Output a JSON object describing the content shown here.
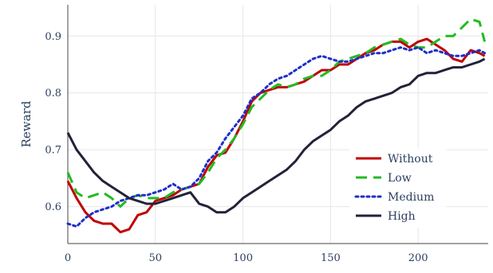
{
  "chart_data": {
    "type": "line",
    "title": "",
    "xlabel": "",
    "ylabel": "Reward",
    "xlim": [
      0,
      240
    ],
    "ylim": [
      0.535,
      0.955
    ],
    "xticks": [
      0,
      50,
      100,
      150,
      200
    ],
    "xtick_labels": [
      "0",
      "50",
      "100",
      "150",
      "200"
    ],
    "yticks": [
      0.6,
      0.7,
      0.8,
      0.9
    ],
    "ytick_labels": [
      "0.6",
      "0.7",
      "0.8",
      "0.9"
    ],
    "grid": true,
    "legend_position": "bottom-right",
    "series": [
      {
        "name": "Without",
        "color": "#c00000",
        "dash": "solid",
        "x": [
          0,
          5,
          10,
          15,
          20,
          25,
          30,
          35,
          40,
          45,
          50,
          55,
          60,
          65,
          70,
          75,
          80,
          85,
          90,
          95,
          100,
          105,
          110,
          115,
          120,
          125,
          130,
          135,
          140,
          145,
          150,
          155,
          160,
          165,
          170,
          175,
          180,
          185,
          190,
          195,
          200,
          205,
          210,
          215,
          220,
          225,
          230,
          235,
          238
        ],
        "y": [
          0.645,
          0.615,
          0.59,
          0.575,
          0.57,
          0.57,
          0.555,
          0.56,
          0.585,
          0.59,
          0.61,
          0.615,
          0.62,
          0.63,
          0.635,
          0.64,
          0.67,
          0.69,
          0.695,
          0.72,
          0.75,
          0.785,
          0.8,
          0.805,
          0.81,
          0.81,
          0.815,
          0.82,
          0.83,
          0.84,
          0.84,
          0.85,
          0.85,
          0.86,
          0.87,
          0.875,
          0.885,
          0.89,
          0.89,
          0.88,
          0.89,
          0.895,
          0.885,
          0.875,
          0.86,
          0.855,
          0.875,
          0.87,
          0.865
        ]
      },
      {
        "name": "Low",
        "color": "#22bb22",
        "dash": "dashed",
        "x": [
          0,
          5,
          10,
          15,
          20,
          25,
          30,
          35,
          40,
          45,
          50,
          55,
          60,
          65,
          70,
          75,
          80,
          85,
          90,
          95,
          100,
          105,
          110,
          115,
          120,
          125,
          130,
          135,
          140,
          145,
          150,
          155,
          160,
          165,
          170,
          175,
          180,
          185,
          190,
          195,
          200,
          205,
          210,
          215,
          220,
          225,
          230,
          235,
          238
        ],
        "y": [
          0.66,
          0.625,
          0.615,
          0.62,
          0.625,
          0.615,
          0.6,
          0.615,
          0.62,
          0.615,
          0.615,
          0.615,
          0.625,
          0.63,
          0.635,
          0.64,
          0.66,
          0.685,
          0.7,
          0.72,
          0.745,
          0.775,
          0.79,
          0.805,
          0.815,
          0.81,
          0.815,
          0.825,
          0.83,
          0.83,
          0.84,
          0.855,
          0.86,
          0.865,
          0.87,
          0.88,
          0.885,
          0.89,
          0.895,
          0.885,
          0.88,
          0.88,
          0.89,
          0.9,
          0.9,
          0.915,
          0.93,
          0.925,
          0.89
        ]
      },
      {
        "name": "Medium",
        "color": "#1f2fc8",
        "dash": "dotted",
        "x": [
          0,
          5,
          10,
          15,
          20,
          25,
          30,
          35,
          40,
          45,
          50,
          55,
          60,
          65,
          70,
          75,
          80,
          85,
          90,
          95,
          100,
          105,
          110,
          115,
          120,
          125,
          130,
          135,
          140,
          145,
          150,
          155,
          160,
          165,
          170,
          175,
          180,
          185,
          190,
          195,
          200,
          205,
          210,
          215,
          220,
          225,
          230,
          235,
          238
        ],
        "y": [
          0.57,
          0.565,
          0.58,
          0.59,
          0.595,
          0.6,
          0.61,
          0.615,
          0.62,
          0.62,
          0.625,
          0.63,
          0.64,
          0.63,
          0.635,
          0.65,
          0.68,
          0.695,
          0.72,
          0.74,
          0.76,
          0.79,
          0.8,
          0.815,
          0.825,
          0.83,
          0.84,
          0.85,
          0.86,
          0.865,
          0.86,
          0.855,
          0.855,
          0.86,
          0.865,
          0.87,
          0.87,
          0.875,
          0.88,
          0.875,
          0.88,
          0.87,
          0.875,
          0.87,
          0.865,
          0.865,
          0.87,
          0.875,
          0.87
        ]
      },
      {
        "name": "High",
        "color": "#22223a",
        "dash": "solid",
        "x": [
          0,
          5,
          10,
          15,
          20,
          25,
          30,
          35,
          40,
          45,
          50,
          55,
          60,
          65,
          70,
          75,
          80,
          85,
          90,
          95,
          100,
          105,
          110,
          115,
          120,
          125,
          130,
          135,
          140,
          145,
          150,
          155,
          160,
          165,
          170,
          175,
          180,
          185,
          190,
          195,
          200,
          205,
          210,
          215,
          220,
          225,
          230,
          235,
          238
        ],
        "y": [
          0.73,
          0.7,
          0.68,
          0.66,
          0.645,
          0.635,
          0.625,
          0.615,
          0.61,
          0.605,
          0.605,
          0.61,
          0.615,
          0.62,
          0.625,
          0.605,
          0.6,
          0.59,
          0.59,
          0.6,
          0.615,
          0.625,
          0.635,
          0.645,
          0.655,
          0.665,
          0.68,
          0.7,
          0.715,
          0.725,
          0.735,
          0.75,
          0.76,
          0.775,
          0.785,
          0.79,
          0.795,
          0.8,
          0.81,
          0.815,
          0.83,
          0.835,
          0.835,
          0.84,
          0.845,
          0.845,
          0.85,
          0.855,
          0.86
        ]
      }
    ]
  }
}
